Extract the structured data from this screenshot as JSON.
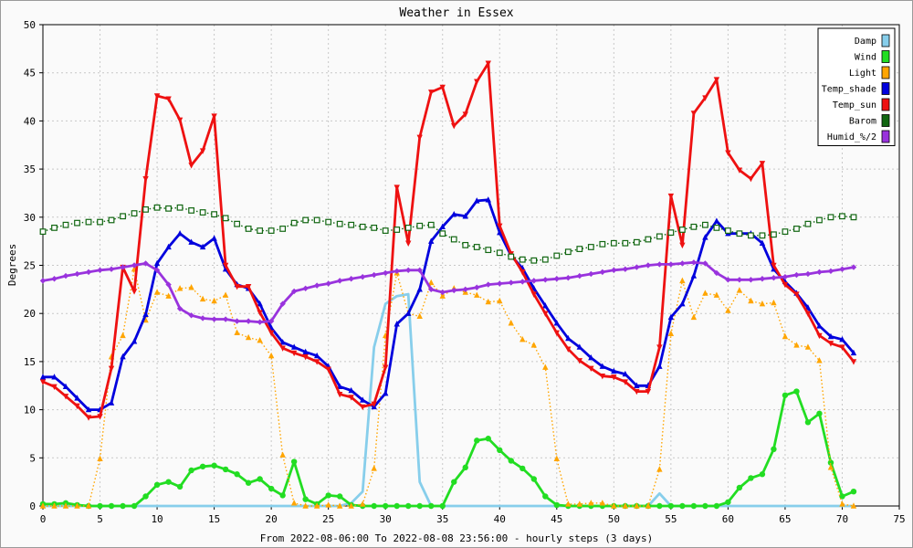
{
  "chart_data": {
    "type": "line",
    "title": "Weather in Essex",
    "xlabel": "From 2022-08-06:00 To 2022-08-08 23:56:00 - hourly steps (3 days)",
    "ylabel": "Degrees",
    "xlim": [
      0,
      75
    ],
    "ylim": [
      0,
      50
    ],
    "x_ticks": [
      0,
      5,
      10,
      15,
      20,
      25,
      30,
      35,
      40,
      45,
      50,
      55,
      60,
      65,
      70,
      75
    ],
    "y_ticks": [
      0,
      5,
      10,
      15,
      20,
      25,
      30,
      35,
      40,
      45,
      50
    ],
    "grid": true,
    "legend_position": "top-right",
    "series": [
      {
        "name": "Damp",
        "color": "#87ceeb",
        "style": "solid",
        "marker": "none",
        "values": [
          0,
          0,
          0,
          0,
          0,
          0,
          0,
          0,
          0,
          0,
          0,
          0,
          0,
          0,
          0,
          0,
          0,
          0,
          0,
          0,
          0,
          0,
          0,
          0,
          0,
          0,
          0,
          0.3,
          1.5,
          16.5,
          21,
          21.8,
          22,
          2.5,
          0,
          0,
          0,
          0,
          0,
          0,
          0,
          0,
          0,
          0,
          0,
          0,
          0,
          0,
          0,
          0,
          0,
          0,
          0,
          0,
          1.3,
          0,
          0,
          0,
          0,
          0,
          0,
          0,
          0,
          0,
          0,
          0,
          0,
          0,
          0,
          0,
          0,
          0
        ]
      },
      {
        "name": "Wind",
        "color": "#22dd22",
        "style": "solid",
        "marker": "circle",
        "values": [
          0.2,
          0.2,
          0.3,
          0.1,
          0,
          0,
          0,
          0,
          0,
          1,
          2.2,
          2.5,
          2,
          3.7,
          4.1,
          4.2,
          3.8,
          3.3,
          2.4,
          2.8,
          1.8,
          1.1,
          4.6,
          0.7,
          0.2,
          1.1,
          1,
          0.1,
          0,
          0,
          0,
          0,
          0,
          0,
          0,
          0,
          2.5,
          4,
          6.8,
          7,
          5.8,
          4.7,
          3.9,
          2.8,
          1,
          0.1,
          0,
          0,
          0,
          0,
          0,
          0,
          0,
          0,
          0,
          0,
          0,
          0,
          0,
          0,
          0.4,
          1.9,
          2.9,
          3.3,
          5.9,
          11.5,
          11.9,
          8.7,
          9.6,
          4.5,
          1,
          1.5
        ]
      },
      {
        "name": "Light",
        "color": "#ffa500",
        "style": "dotted",
        "marker": "triangle-up",
        "values": [
          0,
          0,
          0,
          0,
          0,
          4.9,
          15.5,
          17.7,
          24.6,
          19.3,
          22.2,
          21.8,
          22.6,
          22.7,
          21.5,
          21.3,
          21.9,
          18,
          17.5,
          17.2,
          15.6,
          5.3,
          0.3,
          0,
          0,
          0.1,
          0,
          0,
          0.2,
          3.9,
          17.7,
          24.2,
          20,
          19.7,
          23.2,
          21.8,
          22.6,
          22.2,
          21.9,
          21.2,
          21.3,
          19,
          17.3,
          16.7,
          14.4,
          4.9,
          0.2,
          0.2,
          0.3,
          0.3,
          0,
          0,
          0,
          0,
          3.8,
          17.9,
          23.4,
          19.6,
          22.1,
          21.9,
          20.3,
          22.4,
          21.3,
          21,
          21.1,
          17.6,
          16.7,
          16.5,
          15.1,
          4,
          0.2,
          0
        ]
      },
      {
        "name": "Temp_shade",
        "color": "#0000dd",
        "style": "solid",
        "marker": "triangle-up",
        "values": [
          13.4,
          13.4,
          12.4,
          11.2,
          10,
          10,
          10.7,
          15.5,
          17.1,
          19.9,
          25.2,
          26.9,
          28.3,
          27.4,
          26.9,
          27.8,
          24.6,
          23,
          22.6,
          21,
          18.5,
          17,
          16.5,
          16,
          15.6,
          14.5,
          12.4,
          12,
          11,
          10.3,
          11.7,
          18.9,
          20,
          22.5,
          27.5,
          29,
          30.3,
          30.1,
          31.7,
          31.8,
          28.4,
          26,
          24.7,
          22.6,
          20.8,
          19,
          17.4,
          16.5,
          15.4,
          14.5,
          14,
          13.7,
          12.5,
          12.5,
          14.5,
          19.6,
          21,
          23.9,
          27.9,
          29.6,
          28.3,
          28.3,
          28.3,
          27.3,
          24.6,
          23.3,
          22.1,
          20.6,
          18.7,
          17.6,
          17.3,
          15.9
        ]
      },
      {
        "name": "Temp_sun",
        "color": "#ee1111",
        "style": "solid",
        "marker": "triangle-down",
        "values": [
          12.9,
          12.4,
          11.4,
          10.4,
          9.2,
          9.3,
          14.3,
          24.8,
          22.3,
          34,
          42.6,
          42.3,
          40.1,
          35.4,
          36.9,
          40.5,
          25,
          22.8,
          22.8,
          20.1,
          18,
          16.4,
          15.9,
          15.5,
          15,
          14.2,
          11.6,
          11.3,
          10.3,
          10.6,
          14.4,
          33.1,
          27.3,
          38.3,
          43,
          43.5,
          39.5,
          40.7,
          44.1,
          46,
          29.1,
          26.2,
          24.3,
          22,
          20,
          18,
          16.3,
          15.1,
          14.3,
          13.5,
          13.4,
          12.9,
          11.9,
          11.9,
          16.5,
          32.2,
          27.1,
          40.8,
          42.4,
          44.3,
          36.7,
          34.9,
          34,
          35.6,
          25,
          23,
          22,
          20,
          17.7,
          16.9,
          16.5,
          15
        ]
      },
      {
        "name": "Barom",
        "color": "#116611",
        "style": "dotted",
        "marker": "square",
        "values": [
          28.5,
          28.9,
          29.2,
          29.4,
          29.5,
          29.5,
          29.7,
          30.1,
          30.4,
          30.8,
          31,
          30.9,
          31,
          30.7,
          30.5,
          30.3,
          29.9,
          29.3,
          28.8,
          28.6,
          28.6,
          28.8,
          29.4,
          29.7,
          29.7,
          29.5,
          29.3,
          29.2,
          29,
          28.9,
          28.6,
          28.7,
          28.9,
          29.1,
          29.2,
          28.3,
          27.7,
          27.1,
          26.9,
          26.6,
          26.3,
          25.9,
          25.6,
          25.5,
          25.6,
          26,
          26.4,
          26.7,
          26.9,
          27.2,
          27.3,
          27.3,
          27.4,
          27.7,
          28,
          28.4,
          28.7,
          29,
          29.2,
          28.9,
          28.6,
          28.3,
          28.1,
          28.1,
          28.2,
          28.5,
          28.8,
          29.3,
          29.7,
          30,
          30.1,
          30
        ]
      },
      {
        "name": "Humid_%/2",
        "color": "#9933dd",
        "style": "solid",
        "marker": "diamond",
        "values": [
          23.4,
          23.6,
          23.9,
          24.1,
          24.3,
          24.5,
          24.6,
          24.8,
          25,
          25.2,
          24.5,
          23,
          20.5,
          19.8,
          19.5,
          19.4,
          19.4,
          19.2,
          19.2,
          19.1,
          19.2,
          21,
          22.3,
          22.6,
          22.9,
          23.1,
          23.4,
          23.6,
          23.8,
          24,
          24.2,
          24.4,
          24.5,
          24.5,
          22.5,
          22.2,
          22.4,
          22.5,
          22.7,
          23,
          23.1,
          23.2,
          23.3,
          23.4,
          23.5,
          23.6,
          23.7,
          23.9,
          24.1,
          24.3,
          24.5,
          24.6,
          24.8,
          25,
          25.1,
          25.1,
          25.2,
          25.3,
          25.2,
          24.2,
          23.5,
          23.5,
          23.5,
          23.6,
          23.7,
          23.8,
          24,
          24.1,
          24.3,
          24.4,
          24.6,
          24.8
        ]
      }
    ]
  }
}
